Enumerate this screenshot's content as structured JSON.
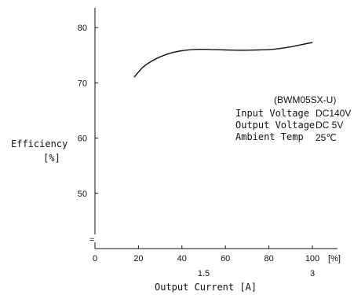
{
  "chart_data": {
    "type": "line",
    "title": "",
    "xlabel": "Output Current [A]",
    "ylabel": "Efficiency",
    "ylabel_unit": "[%]",
    "x_unit": "[%]",
    "xlim": [
      0,
      100
    ],
    "ylim": [
      40,
      80
    ],
    "x_ticks": [
      0,
      20,
      40,
      60,
      80,
      100
    ],
    "y_ticks": [
      50,
      60,
      70,
      80
    ],
    "x_secondary_ticks": [
      {
        "at": 50,
        "label": "1.5"
      },
      {
        "at": 100,
        "label": "3"
      }
    ],
    "axis_break_symbol": "≈",
    "grid": false,
    "series": [
      {
        "x": [
          18,
          22,
          26,
          30,
          35,
          40,
          45,
          50,
          55,
          60,
          65,
          70,
          75,
          80,
          85,
          90,
          95,
          100
        ],
        "y": [
          71.0,
          72.8,
          73.9,
          74.7,
          75.4,
          75.8,
          76.0,
          76.05,
          76.0,
          75.95,
          75.9,
          75.9,
          75.95,
          76.0,
          76.2,
          76.5,
          76.9,
          77.3
        ]
      }
    ],
    "annotation": {
      "model": "(BWM05SX-U)",
      "rows": [
        {
          "label": "Input Voltage",
          "value": "DC140V"
        },
        {
          "label": "Output Voltage",
          "value": "DC 5V"
        },
        {
          "label": "Ambient Temp",
          "value": "25℃"
        }
      ]
    }
  }
}
